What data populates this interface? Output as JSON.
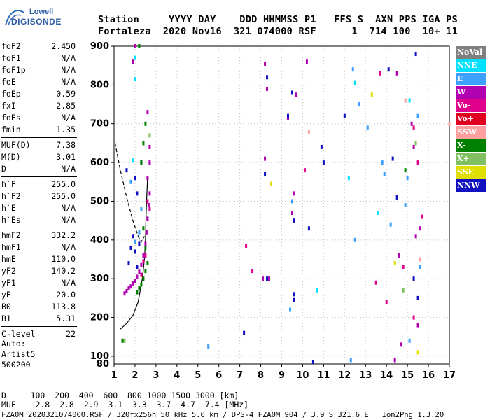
{
  "logo": {
    "line1": "Lowell",
    "line2": "DIGISONDE"
  },
  "header": {
    "labels": "Station     YYYY DAY    DDD HHMMSS P1   FFS S  AXN PPS IGA PS",
    "values": "Fortaleza  2020 Nov16  321 074000 RSF      1  714 100  10+ 11"
  },
  "params": [
    {
      "label": "foF2",
      "value": "2.450"
    },
    {
      "label": "foF1",
      "value": "N/A"
    },
    {
      "label": "foF1p",
      "value": "N/A"
    },
    {
      "label": "foE",
      "value": "N/A"
    },
    {
      "label": "foEp",
      "value": "0.59"
    },
    {
      "label": "fxI",
      "value": "2.85"
    },
    {
      "label": "foEs",
      "value": "N/A"
    },
    {
      "label": "fmin",
      "value": "1.35"
    },
    {
      "label": "MUF(D)",
      "value": "7.38"
    },
    {
      "label": "M(D)",
      "value": "3.01"
    },
    {
      "label": "D",
      "value": "N/A"
    },
    {
      "label": "h`F",
      "value": "255.0"
    },
    {
      "label": "h`F2",
      "value": "255.0"
    },
    {
      "label": "h`E",
      "value": "N/A"
    },
    {
      "label": "h`Es",
      "value": "N/A"
    },
    {
      "label": "hmF2",
      "value": "332.2"
    },
    {
      "label": "hmF1",
      "value": "N/A"
    },
    {
      "label": "hmE",
      "value": "110.0"
    },
    {
      "label": "yF2",
      "value": "140.2"
    },
    {
      "label": "yF1",
      "value": "N/A"
    },
    {
      "label": "yE",
      "value": "20.0"
    },
    {
      "label": "B0",
      "value": "113.8"
    },
    {
      "label": "B1",
      "value": "5.31"
    },
    {
      "label": "C-level",
      "value": "22"
    }
  ],
  "auto": {
    "line1": "Auto:",
    "line2": "Artist5",
    "line3": "500200"
  },
  "legend": [
    {
      "label": "NoVal",
      "color": "#808080"
    },
    {
      "label": "NNE",
      "color": "#00e0ff"
    },
    {
      "label": "E",
      "color": "#3ca0ff"
    },
    {
      "label": "W",
      "color": "#b000b0"
    },
    {
      "label": "Vo-",
      "color": "#e0008c"
    },
    {
      "label": "Vo+",
      "color": "#e00020"
    },
    {
      "label": "SSW",
      "color": "#ffa0a0"
    },
    {
      "label": "X-",
      "color": "#008000"
    },
    {
      "label": "X+",
      "color": "#80c060"
    },
    {
      "label": "SSE",
      "color": "#e0e000"
    },
    {
      "label": "NNW",
      "color": "#1010c0"
    }
  ],
  "muf_table": {
    "row1": "D     100  200  400  600  800 1000 1500 3000 [km]",
    "row2": "MUF    2.8  2.8  2.9  3.1  3.3  3.7  4.7  7.4 [MHz]"
  },
  "footer": "FZA0M_2020321074000.RSF / 320fx256h 50 kHz 5.0 km / DPS-4 FZA0M 904 / 3.9 S 321.6 E   Ion2Png 1.3.20",
  "chart_data": {
    "type": "scatter",
    "xlim": [
      1,
      17
    ],
    "ylim": [
      80,
      900
    ],
    "x_ticks": [
      1,
      2,
      3,
      4,
      5,
      6,
      7,
      8,
      9,
      10,
      11,
      12,
      13,
      14,
      15,
      16,
      17
    ],
    "y_ticks": [
      100,
      200,
      300,
      400,
      500,
      600,
      700,
      800,
      900
    ],
    "xlabel": "",
    "ylabel": "",
    "grid": true,
    "series": [
      {
        "color": "#b000b0",
        "points": [
          [
            1.5,
            262
          ],
          [
            1.6,
            268
          ],
          [
            1.7,
            275
          ],
          [
            1.8,
            280
          ],
          [
            1.9,
            288
          ],
          [
            2.0,
            295
          ],
          [
            2.1,
            305
          ],
          [
            2.2,
            318
          ],
          [
            2.3,
            335
          ],
          [
            2.4,
            360
          ],
          [
            2.5,
            390
          ],
          [
            2.55,
            420
          ],
          [
            2.6,
            455
          ],
          [
            2.65,
            490
          ],
          [
            2.7,
            520
          ],
          [
            2.6,
            560
          ],
          [
            2.7,
            600
          ],
          [
            2.7,
            640
          ],
          [
            2.6,
            730
          ],
          [
            1.9,
            860
          ],
          [
            2.0,
            900
          ],
          [
            8.2,
            855
          ],
          [
            8.3,
            790
          ],
          [
            8.2,
            610
          ],
          [
            9.6,
            520
          ],
          [
            9.5,
            470
          ],
          [
            9.7,
            775
          ],
          [
            10.2,
            860
          ],
          [
            14.5,
            830
          ],
          [
            14.6,
            360
          ],
          [
            15.2,
            700
          ],
          [
            15.3,
            640
          ],
          [
            15.4,
            410
          ],
          [
            15.6,
            430
          ],
          [
            15.5,
            180
          ],
          [
            14.7,
            130
          ],
          [
            14.4,
            90
          ],
          [
            8.1,
            300
          ],
          [
            8.4,
            300
          ],
          [
            9.3,
            715
          ]
        ]
      },
      {
        "color": "#1010c0",
        "points": [
          [
            1.8,
            380
          ],
          [
            1.9,
            410
          ],
          [
            2.0,
            370
          ],
          [
            2.1,
            330
          ],
          [
            2.2,
            390
          ],
          [
            1.7,
            340
          ],
          [
            2.0,
            560
          ],
          [
            2.1,
            520
          ],
          [
            2.3,
            600
          ],
          [
            1.6,
            580
          ],
          [
            8.3,
            820
          ],
          [
            8.2,
            570
          ],
          [
            9.5,
            780
          ],
          [
            9.3,
            720
          ],
          [
            9.6,
            450
          ],
          [
            10.3,
            430
          ],
          [
            10.9,
            640
          ],
          [
            11.0,
            600
          ],
          [
            12.0,
            720
          ],
          [
            14.1,
            840
          ],
          [
            14.3,
            610
          ],
          [
            14.5,
            510
          ],
          [
            15.3,
            300
          ],
          [
            15.5,
            250
          ],
          [
            15.4,
            880
          ],
          [
            8.3,
            300
          ],
          [
            9.6,
            260
          ],
          [
            9.6,
            245
          ],
          [
            10.5,
            85
          ],
          [
            7.2,
            160
          ]
        ]
      },
      {
        "color": "#3ca0ff",
        "points": [
          [
            2.0,
            395
          ],
          [
            2.2,
            420
          ],
          [
            2.3,
            480
          ],
          [
            1.8,
            550
          ],
          [
            9.4,
            220
          ],
          [
            9.5,
            500
          ],
          [
            12.4,
            840
          ],
          [
            12.5,
            400
          ],
          [
            12.7,
            750
          ],
          [
            13.1,
            690
          ],
          [
            14.2,
            440
          ],
          [
            14.9,
            490
          ],
          [
            15.6,
            330
          ],
          [
            15.0,
            560
          ],
          [
            15.5,
            720
          ],
          [
            13.8,
            600
          ],
          [
            5.5,
            125
          ],
          [
            13.9,
            570
          ],
          [
            15.1,
            140
          ],
          [
            12.3,
            90
          ]
        ]
      },
      {
        "color": "#008000",
        "points": [
          [
            2.1,
            265
          ],
          [
            2.2,
            275
          ],
          [
            2.3,
            285
          ],
          [
            2.4,
            300
          ],
          [
            2.5,
            320
          ],
          [
            2.6,
            340
          ],
          [
            2.5,
            380
          ],
          [
            2.4,
            430
          ],
          [
            2.3,
            600
          ],
          [
            2.4,
            650
          ],
          [
            2.5,
            700
          ],
          [
            2.2,
            900
          ],
          [
            1.4,
            140
          ],
          [
            14.9,
            580
          ]
        ]
      },
      {
        "color": "#e0008c",
        "points": [
          [
            2.3,
            310
          ],
          [
            2.4,
            345
          ],
          [
            2.5,
            360
          ],
          [
            2.6,
            500
          ],
          [
            2.7,
            480
          ],
          [
            15.3,
            690
          ],
          [
            15.5,
            600
          ],
          [
            14.8,
            330
          ],
          [
            15.7,
            460
          ],
          [
            15.3,
            200
          ],
          [
            7.3,
            385
          ],
          [
            7.6,
            320
          ],
          [
            13.5,
            290
          ],
          [
            14.0,
            240
          ],
          [
            13.7,
            830
          ],
          [
            10.1,
            580
          ]
        ]
      },
      {
        "color": "#80c060",
        "points": [
          [
            2.7,
            670
          ],
          [
            1.5,
            140
          ],
          [
            15.4,
            650
          ],
          [
            14.8,
            270
          ]
        ]
      },
      {
        "color": "#e0e000",
        "points": [
          [
            8.5,
            545
          ],
          [
            13.3,
            775
          ],
          [
            14.4,
            340
          ],
          [
            15.5,
            110
          ]
        ]
      },
      {
        "color": "#ffa0a0",
        "points": [
          [
            17.0,
            700
          ],
          [
            14.9,
            760
          ],
          [
            15.6,
            350
          ],
          [
            10.3,
            680
          ]
        ]
      },
      {
        "color": "#00e0ff",
        "points": [
          [
            2.0,
            870
          ],
          [
            2.0,
            815
          ],
          [
            1.9,
            605
          ],
          [
            10.7,
            270
          ],
          [
            12.2,
            560
          ],
          [
            13.6,
            470
          ],
          [
            15.1,
            760
          ],
          [
            12.5,
            805
          ]
        ]
      }
    ],
    "trace_solid": [
      [
        1.3,
        170
      ],
      [
        1.6,
        185
      ],
      [
        1.9,
        205
      ],
      [
        2.15,
        240
      ],
      [
        2.35,
        300
      ],
      [
        2.45,
        350
      ],
      [
        2.5,
        400
      ],
      [
        2.52,
        450
      ],
      [
        2.55,
        500
      ],
      [
        2.6,
        560
      ]
    ],
    "trace_dashed": [
      [
        1.05,
        650
      ],
      [
        1.3,
        580
      ],
      [
        1.6,
        510
      ],
      [
        1.9,
        450
      ],
      [
        2.15,
        410
      ],
      [
        2.3,
        395
      ],
      [
        2.45,
        410
      ]
    ]
  }
}
